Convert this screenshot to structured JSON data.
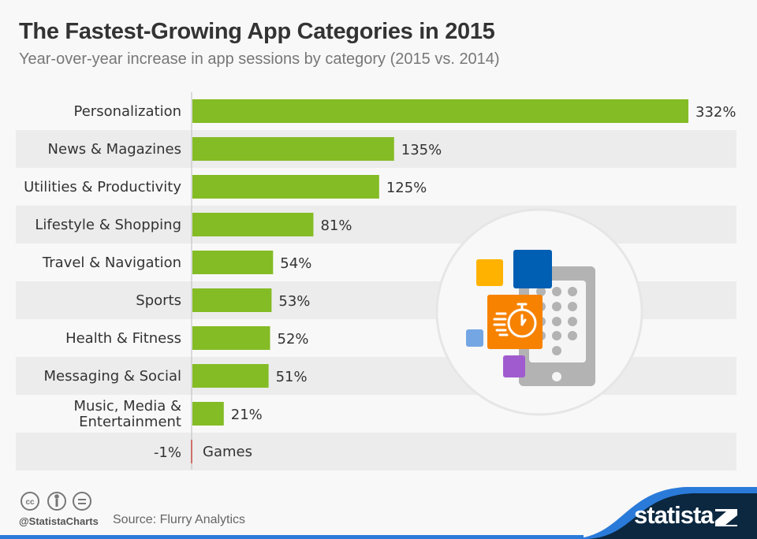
{
  "chart_data": {
    "type": "bar",
    "orientation": "horizontal",
    "title": "The Fastest-Growing App Categories in 2015",
    "subtitle": "Year-over-year increase in app sessions by category (2015 vs. 2014)",
    "categories": [
      "Personalization",
      "News & Magazines",
      "Utilities & Productivity",
      "Lifestyle & Shopping",
      "Travel & Navigation",
      "Sports",
      "Health & Fitness",
      "Messaging & Social",
      "Music, Media & Entertainment",
      "Games"
    ],
    "category_lines": [
      [
        "Personalization"
      ],
      [
        "News & Magazines"
      ],
      [
        "Utilities & Productivity"
      ],
      [
        "Lifestyle & Shopping"
      ],
      [
        "Travel & Navigation"
      ],
      [
        "Sports"
      ],
      [
        "Health & Fitness"
      ],
      [
        "Messaging & Social"
      ],
      [
        "Music, Media &",
        "Entertainment"
      ],
      [
        "Games"
      ]
    ],
    "values": [
      332,
      135,
      125,
      81,
      54,
      53,
      52,
      51,
      21,
      -1
    ],
    "labels": [
      "332%",
      "135%",
      "125%",
      "81%",
      "54%",
      "53%",
      "52%",
      "51%",
      "21%",
      "-1%"
    ],
    "unit": "%",
    "xlim": [
      -1,
      332
    ],
    "colors": {
      "positive": "#84bc25",
      "negative": "#e0261c",
      "stripe": "#ececec",
      "background": "#f8f8f8"
    }
  },
  "footer": {
    "handle": "@StatistaCharts",
    "source": "Source: Flurry Analytics",
    "logo": "statista",
    "license_icons": [
      "cc-icon",
      "by-icon",
      "nd-icon"
    ]
  },
  "colors": {
    "brand_dark": "#0b2840",
    "brand_blue": "#2a7ad9"
  }
}
